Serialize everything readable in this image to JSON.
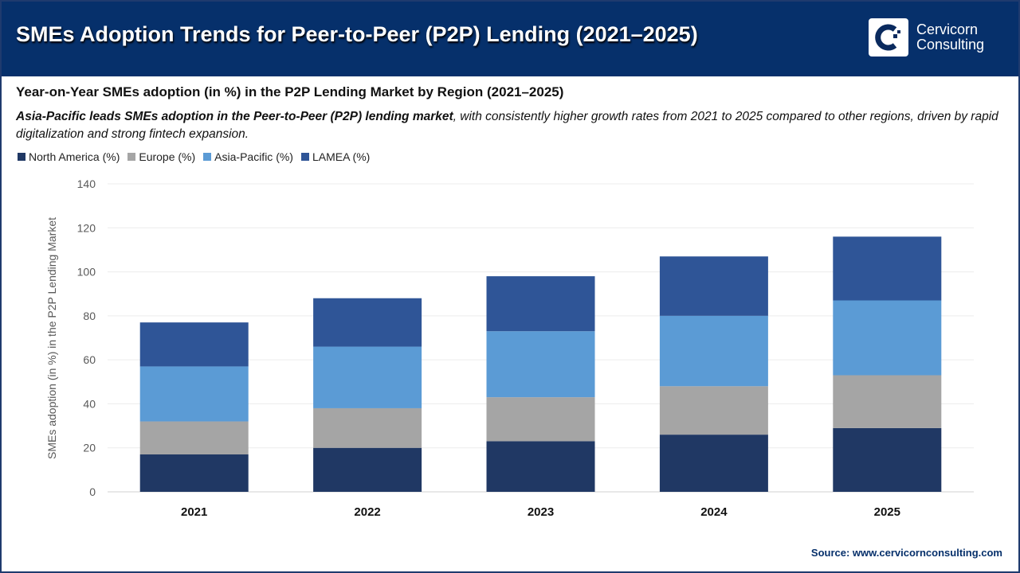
{
  "header": {
    "title": "SMEs Adoption Trends for Peer-to-Peer (P2P) Lending (2021–2025)",
    "logo_text": [
      "Cervicorn",
      "Consulting"
    ],
    "background": "#06306b"
  },
  "subtitle": "Year-on-Year SMEs adoption (in %) in the P2P Lending Market by Region (2021–2025)",
  "description": {
    "bold": "Asia-Pacific leads SMEs adoption in the Peer-to-Peer (P2P) lending market",
    "rest": ", with consistently higher growth rates from 2021 to 2025 compared to other regions, driven by rapid digitalization and strong fintech expansion."
  },
  "source": "Source: www.cervicornconsulting.com",
  "chart_data": {
    "type": "bar",
    "stacked": true,
    "categories": [
      "2021",
      "2022",
      "2023",
      "2024",
      "2025"
    ],
    "series": [
      {
        "name": "North America (%)",
        "color": "#203864",
        "values": [
          17,
          20,
          23,
          26,
          29
        ]
      },
      {
        "name": "Europe (%)",
        "color": "#a5a5a5",
        "values": [
          15,
          18,
          20,
          22,
          24
        ]
      },
      {
        "name": "Asia-Pacific (%)",
        "color": "#5b9bd5",
        "values": [
          25,
          28,
          30,
          32,
          34
        ]
      },
      {
        "name": "LAMEA (%)",
        "color": "#2f5597",
        "values": [
          20,
          22,
          25,
          27,
          29
        ]
      }
    ],
    "ylabel": "SMEs adoption (in %) in the P2P Lending Market",
    "xlabel": "",
    "ylim": [
      0,
      140
    ],
    "yticks": [
      0,
      20,
      40,
      60,
      80,
      100,
      120,
      140
    ],
    "grid": true,
    "legend": "top-left"
  }
}
